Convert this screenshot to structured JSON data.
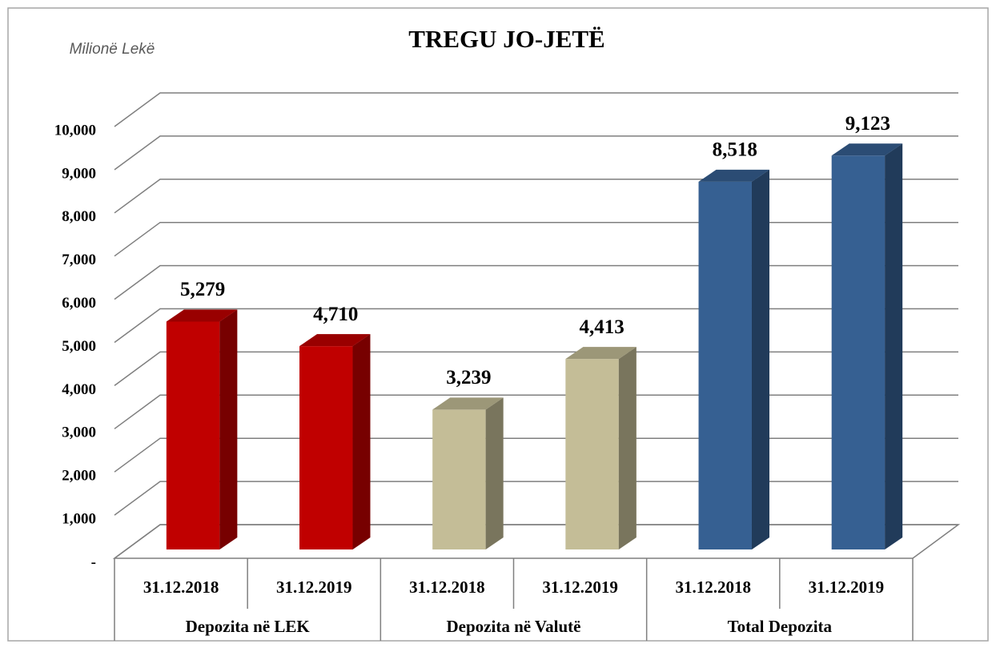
{
  "chart_data": {
    "type": "bar3d",
    "title": "TREGU JO-JETË",
    "subtitle": "Milionë Lekë",
    "categories": [
      "31.12.2018",
      "31.12.2019",
      "31.12.2018",
      "31.12.2019",
      "31.12.2018",
      "31.12.2019"
    ],
    "groups": [
      "Depozita në LEK",
      "Depozita në Valutë",
      "Total Depozita"
    ],
    "values": [
      5279,
      4710,
      3239,
      4413,
      8518,
      9123
    ],
    "value_labels": [
      "5,279",
      "4,710",
      "3,239",
      "4,413",
      "8,518",
      "9,123"
    ],
    "colors": [
      "#c00000",
      "#c00000",
      "#c4bd97",
      "#c4bd97",
      "#366092",
      "#366092"
    ],
    "ylim": [
      0,
      10000
    ],
    "yticks": [
      {
        "value": 0,
        "label": "-"
      },
      {
        "value": 1000,
        "label": "1,000"
      },
      {
        "value": 2000,
        "label": "2,000"
      },
      {
        "value": 3000,
        "label": "3,000"
      },
      {
        "value": 4000,
        "label": "4,000"
      },
      {
        "value": 5000,
        "label": "5,000"
      },
      {
        "value": 6000,
        "label": "6,000"
      },
      {
        "value": 7000,
        "label": "7,000"
      },
      {
        "value": 8000,
        "label": "8,000"
      },
      {
        "value": 9000,
        "label": "9,000"
      },
      {
        "value": 10000,
        "label": "10,000"
      }
    ],
    "grid": true
  }
}
